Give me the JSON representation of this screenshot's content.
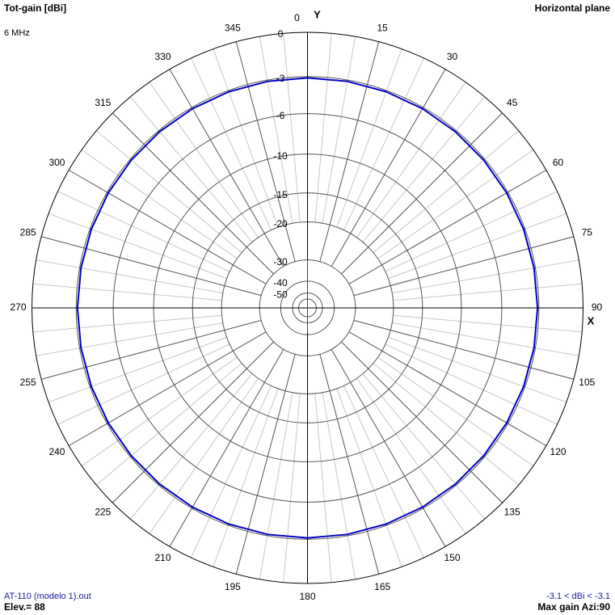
{
  "title": "Tot-gain [dBi]",
  "plane": "Horizontal plane",
  "frequency": "6 MHz",
  "chart_data": {
    "type": "polar",
    "rlim": [
      -50,
      0
    ],
    "rticks": [
      0,
      -3,
      -6,
      -10,
      -15,
      -20,
      -30,
      -40,
      -50
    ],
    "angle_ticks": [
      0,
      15,
      30,
      45,
      60,
      75,
      90,
      105,
      120,
      135,
      150,
      165,
      180,
      195,
      210,
      225,
      240,
      255,
      270,
      285,
      300,
      315,
      330,
      345
    ],
    "y_axis_label": "Y",
    "x_axis_label": "X",
    "color": "#0000c0",
    "theta": [
      0,
      10,
      20,
      30,
      40,
      50,
      60,
      70,
      80,
      90,
      100,
      110,
      120,
      130,
      140,
      150,
      160,
      170,
      180,
      190,
      200,
      210,
      220,
      230,
      240,
      250,
      260,
      270,
      280,
      290,
      300,
      310,
      320,
      330,
      340,
      350
    ],
    "values": [
      -3.1,
      -3.1,
      -3.1,
      -3.1,
      -3.1,
      -3.1,
      -3.1,
      -3.1,
      -3.1,
      -3.1,
      -3.1,
      -3.1,
      -3.1,
      -3.1,
      -3.1,
      -3.1,
      -3.1,
      -3.1,
      -3.1,
      -3.1,
      -3.1,
      -3.1,
      -3.1,
      -3.1,
      -3.1,
      -3.1,
      -3.1,
      -3.1,
      -3.1,
      -3.1,
      -3.1,
      -3.1,
      -3.1,
      -3.1,
      -3.1,
      -3.1
    ]
  },
  "footer": {
    "file": "AT-110 (modelo 1).out",
    "elevation": "Elev.= 88",
    "range": "-3.1 < dBi < -3.1",
    "max_gain": "Max gain Azi:90"
  }
}
